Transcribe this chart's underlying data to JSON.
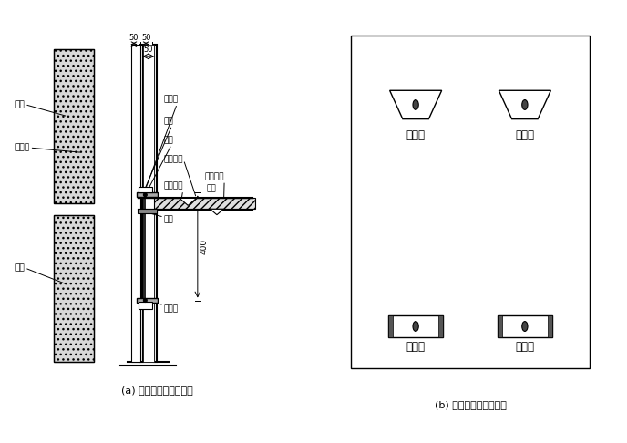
{
  "bg_color": "#ffffff",
  "line_color": "#000000",
  "caption_a": "(a) 外墙竖向连接示意图",
  "caption_b": "(b) 外墙正面连接示意图",
  "label_wallboard_top": "墙板",
  "label_embed": "预埋件",
  "label_wallboard_bottom": "墙板",
  "label_lower_node": "下节点",
  "label_pad1": "垫板",
  "label_bolt": "螺栓",
  "label_arch_elev": "建筑标高",
  "label_struct_top": "结构板顶",
  "label_struct_elev": "标高",
  "label_composite": "叠合楼板",
  "label_pad2": "垫板",
  "label_upper_node": "上节点",
  "label_400": "400",
  "label_50_1": "50",
  "label_50_2": "50",
  "label_50_3": "50",
  "label_upper_node_b": "上节点",
  "label_lower_node_b": "下节点"
}
